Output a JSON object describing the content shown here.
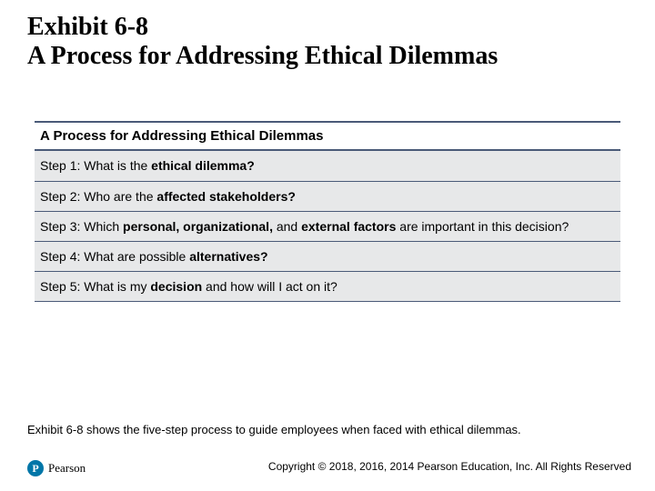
{
  "title": {
    "line1": "Exhibit 6-8",
    "line2": "A Process for Addressing Ethical Dilemmas"
  },
  "table": {
    "header": "A Process for Addressing Ethical Dilemmas",
    "header_fontsize": 15,
    "cell_fontsize": 14,
    "cell_bg": "#e7e8e9",
    "border_color": "#4a5a78",
    "rows": [
      {
        "prefix": "Step 1: What is the ",
        "bold": "ethical dilemma?",
        "suffix": ""
      },
      {
        "prefix": "Step 2: Who are the ",
        "bold": "affected stakeholders?",
        "suffix": ""
      },
      {
        "prefix": "Step 3: Which ",
        "bold": "personal, organizational,",
        "mid": " and ",
        "bold2": "external factors",
        "suffix": " are important in this decision?"
      },
      {
        "prefix": "Step 4: What are possible ",
        "bold": "alternatives?",
        "suffix": ""
      },
      {
        "prefix": "Step 5: What is my ",
        "bold": "decision",
        "suffix": " and how will I act on it?"
      }
    ]
  },
  "caption": "Exhibit 6-8 shows the five-step process to guide employees when faced with ethical dilemmas.",
  "logo": {
    "letter": "P",
    "name": "Pearson",
    "circle_color": "#0076a8"
  },
  "copyright": "Copyright © 2018, 2016, 2014 Pearson Education, Inc. All Rights Reserved",
  "colors": {
    "text": "#000000",
    "background": "#ffffff"
  }
}
